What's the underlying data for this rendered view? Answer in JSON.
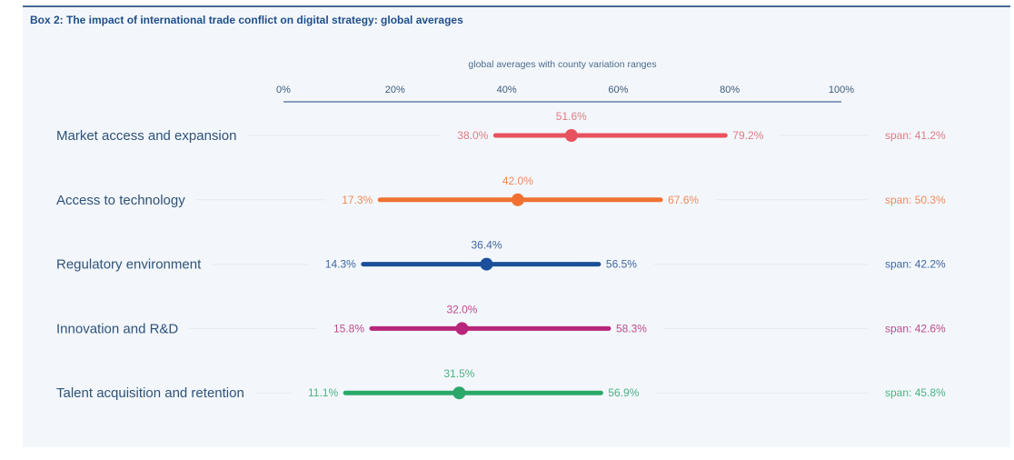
{
  "box": {
    "title": "Box 2: The impact of international trade conflict on digital strategy: global averages"
  },
  "chart_data": {
    "type": "range-dot",
    "title": "Box 2: The impact of international trade conflict on digital strategy: global averages",
    "subtitle": "global averages with county variation ranges",
    "xlim": [
      0,
      100
    ],
    "xticks": [
      0,
      20,
      40,
      60,
      80,
      100
    ],
    "xtick_labels": [
      "0%",
      "20%",
      "40%",
      "60%",
      "80%",
      "100%"
    ],
    "grid": false,
    "series": [
      {
        "name": "Market access and expansion",
        "min": 38.0,
        "avg": 51.6,
        "max": 79.2,
        "span": 41.2,
        "min_label": "38.0%",
        "avg_label": "51.6%",
        "max_label": "79.2%",
        "span_label": "span: 41.2%",
        "color": "#e8525e",
        "text_color": "#e07a83"
      },
      {
        "name": "Access to technology",
        "min": 17.3,
        "avg": 42.0,
        "max": 67.6,
        "span": 50.3,
        "min_label": "17.3%",
        "avg_label": "42.0%",
        "max_label": "67.6%",
        "span_label": "span: 50.3%",
        "color": "#f07132",
        "text_color": "#ee8a5c"
      },
      {
        "name": "Regulatory environment",
        "min": 14.3,
        "avg": 36.4,
        "max": 56.5,
        "span": 42.2,
        "min_label": "14.3%",
        "avg_label": "36.4%",
        "max_label": "56.5%",
        "span_label": "span: 42.2%",
        "color": "#1c4f9a",
        "text_color": "#3f66a0"
      },
      {
        "name": "Innovation and R&D",
        "min": 15.8,
        "avg": 32.0,
        "max": 58.3,
        "span": 42.6,
        "min_label": "15.8%",
        "avg_label": "32.0%",
        "max_label": "58.3%",
        "span_label": "span: 42.6%",
        "color": "#b8267a",
        "text_color": "#bd4a8d"
      },
      {
        "name": "Talent acquisition and retention",
        "min": 11.1,
        "avg": 31.5,
        "max": 56.9,
        "span": 45.8,
        "min_label": "11.1%",
        "avg_label": "31.5%",
        "max_label": "56.9%",
        "span_label": "span: 45.8%",
        "color": "#2aa86a",
        "text_color": "#4bb283"
      }
    ]
  }
}
